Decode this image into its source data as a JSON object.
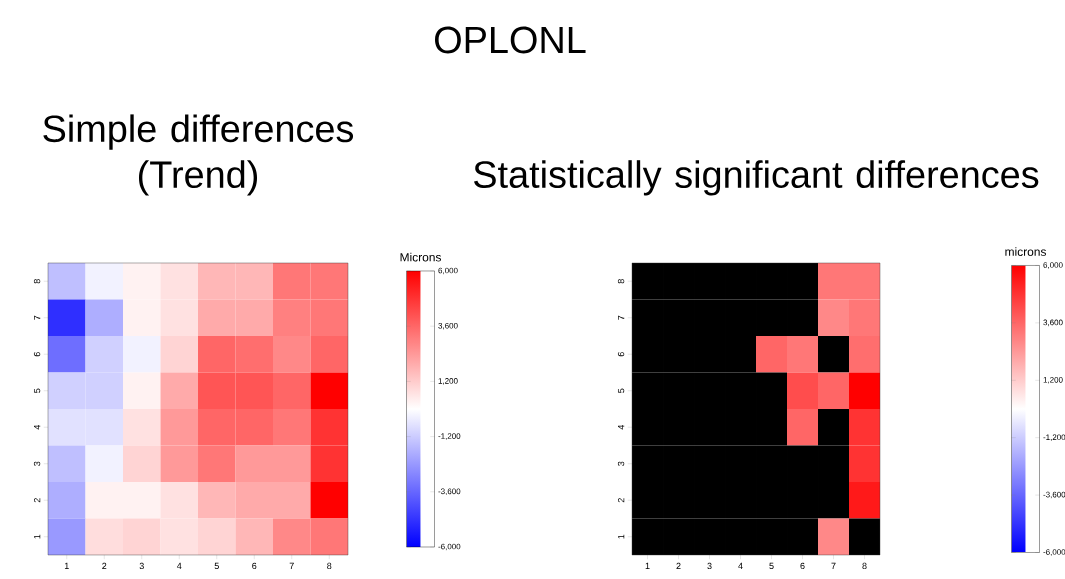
{
  "chart_data": [
    {
      "type": "heatmap",
      "title": "Simple differences (Trend)",
      "annotations": [
        "OPLONL"
      ],
      "clabel": "Microns",
      "categories": [
        "1",
        "2",
        "3",
        "4",
        "5",
        "6",
        "7",
        "8"
      ],
      "y_categories": [
        "8",
        "7",
        "6",
        "5",
        "4",
        "3",
        "2",
        "1"
      ],
      "cells": [
        [
          -1500,
          -300,
          300,
          700,
          1700,
          1700,
          3200,
          3200
        ],
        [
          -4900,
          -1900,
          300,
          700,
          2000,
          2000,
          3000,
          3200
        ],
        [
          -3400,
          -1100,
          -300,
          1000,
          3600,
          3400,
          2800,
          3600
        ],
        [
          -1100,
          -1100,
          300,
          2000,
          4000,
          4000,
          3600,
          6000
        ],
        [
          -700,
          -700,
          700,
          2400,
          3600,
          3600,
          3200,
          4800
        ],
        [
          -1500,
          -300,
          1000,
          2400,
          3200,
          2400,
          2400,
          4800
        ],
        [
          -1900,
          300,
          300,
          700,
          1700,
          2000,
          2000,
          6000
        ],
        [
          -2400,
          800,
          1000,
          700,
          1000,
          1700,
          2800,
          3200
        ]
      ],
      "clim": [
        -6000,
        6000
      ],
      "cticks": [
        {
          "value": 6000,
          "label": "6,000"
        },
        {
          "value": 3600,
          "label": "3,600"
        },
        {
          "value": 1200,
          "label": "1,200"
        },
        {
          "value": -1200,
          "label": "-1,200"
        },
        {
          "value": -3600,
          "label": "-3,600"
        },
        {
          "value": -6000,
          "label": "-6,000"
        }
      ]
    },
    {
      "type": "heatmap",
      "title": "Statistically significant differences",
      "clabel": "microns",
      "categories": [
        "1",
        "2",
        "3",
        "4",
        "5",
        "6",
        "7",
        "8"
      ],
      "y_categories": [
        "8",
        "7",
        "6",
        "5",
        "4",
        "3",
        "2",
        "1"
      ],
      "cells": [
        [
          null,
          null,
          null,
          null,
          null,
          null,
          3200,
          3200
        ],
        [
          null,
          null,
          null,
          null,
          null,
          null,
          2800,
          3200
        ],
        [
          null,
          null,
          null,
          null,
          3600,
          3200,
          null,
          3400
        ],
        [
          null,
          null,
          null,
          null,
          null,
          4200,
          3600,
          6000
        ],
        [
          null,
          null,
          null,
          null,
          null,
          3600,
          null,
          4800
        ],
        [
          null,
          null,
          null,
          null,
          null,
          null,
          null,
          4800
        ],
        [
          null,
          null,
          null,
          null,
          null,
          null,
          null,
          5400
        ],
        [
          null,
          null,
          null,
          null,
          null,
          null,
          2800,
          null
        ]
      ],
      "clim": [
        -6000,
        6000
      ],
      "cticks": [
        {
          "value": 6000,
          "label": "6,000"
        },
        {
          "value": 3600,
          "label": "3,600"
        },
        {
          "value": 1200,
          "label": "1,200"
        },
        {
          "value": -1200,
          "label": "-1,200"
        },
        {
          "value": -3600,
          "label": "-3,600"
        },
        {
          "value": -6000,
          "label": "-6,000"
        }
      ]
    }
  ]
}
